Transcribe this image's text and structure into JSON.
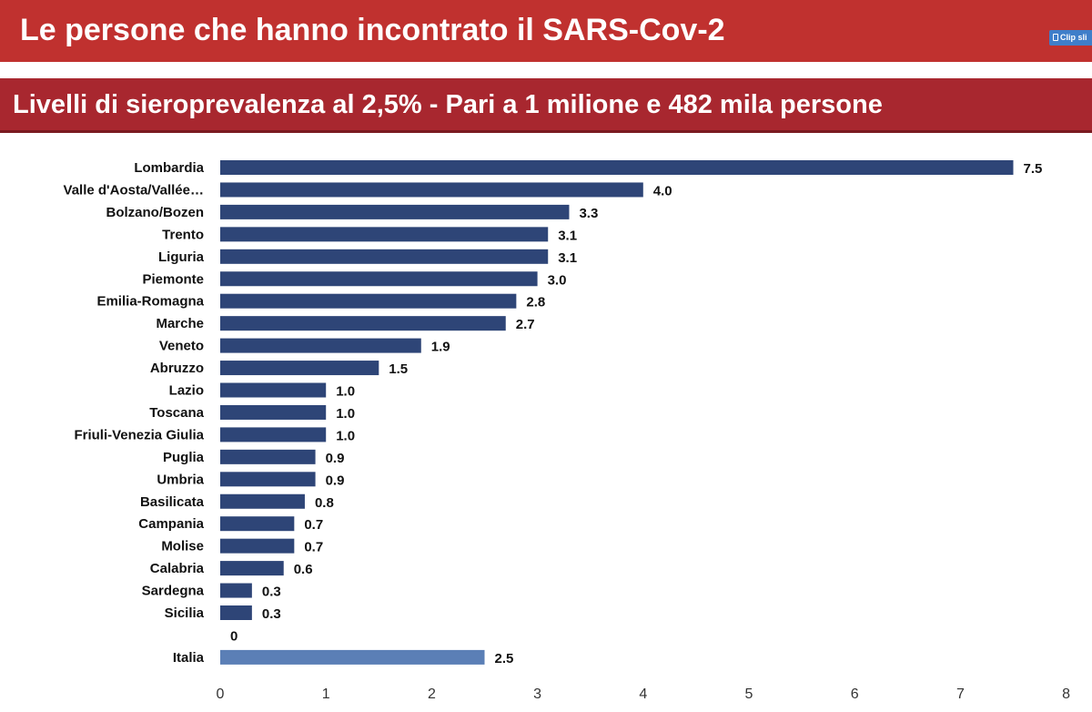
{
  "header": {
    "title": "Le  persone che hanno incontrato il SARS-Cov-2",
    "clip_label": "Clip sli"
  },
  "subheader": {
    "title": "Livelli di sieroprevalenza al 2,5% - Pari a 1 milione e 482 mila persone"
  },
  "chart_data": {
    "type": "bar",
    "orientation": "horizontal",
    "title": "",
    "xlabel": "",
    "ylabel": "",
    "xlim": [
      0,
      8
    ],
    "x_ticks": [
      "0",
      "1",
      "2",
      "3",
      "4",
      "5",
      "6",
      "7",
      "8"
    ],
    "grid": false,
    "categories": [
      "Lombardia",
      "Valle d'Aosta/Vallée…",
      "Bolzano/Bozen",
      "Trento",
      "Liguria",
      "Piemonte",
      "Emilia-Romagna",
      "Marche",
      "Veneto",
      "Abruzzo",
      "Lazio",
      "Toscana",
      "Friuli-Venezia Giulia",
      "Puglia",
      "Umbria",
      "Basilicata",
      "Campania",
      "Molise",
      "Calabria",
      "Sardegna",
      "Sicilia",
      "",
      "Italia"
    ],
    "values": [
      7.5,
      4.0,
      3.3,
      3.1,
      3.1,
      3.0,
      2.8,
      2.7,
      1.9,
      1.5,
      1.0,
      1.0,
      1.0,
      0.9,
      0.9,
      0.8,
      0.7,
      0.7,
      0.6,
      0.3,
      0.3,
      0,
      2.5
    ],
    "value_labels": [
      "7.5",
      "4.0",
      "3.3",
      "3.1",
      "3.1",
      "3.0",
      "2.8",
      "2.7",
      "1.9",
      "1.5",
      "1.0",
      "1.0",
      "1.0",
      "0.9",
      "0.9",
      "0.8",
      "0.7",
      "0.7",
      "0.6",
      "0.3",
      "0.3",
      "0",
      "2.5"
    ],
    "highlight": [
      false,
      false,
      false,
      false,
      false,
      false,
      false,
      false,
      false,
      false,
      false,
      false,
      false,
      false,
      false,
      false,
      false,
      false,
      false,
      false,
      false,
      false,
      true
    ],
    "colors": {
      "bar": "#2e4577",
      "highlight": "#5b7fb6",
      "text": "#111111"
    }
  }
}
